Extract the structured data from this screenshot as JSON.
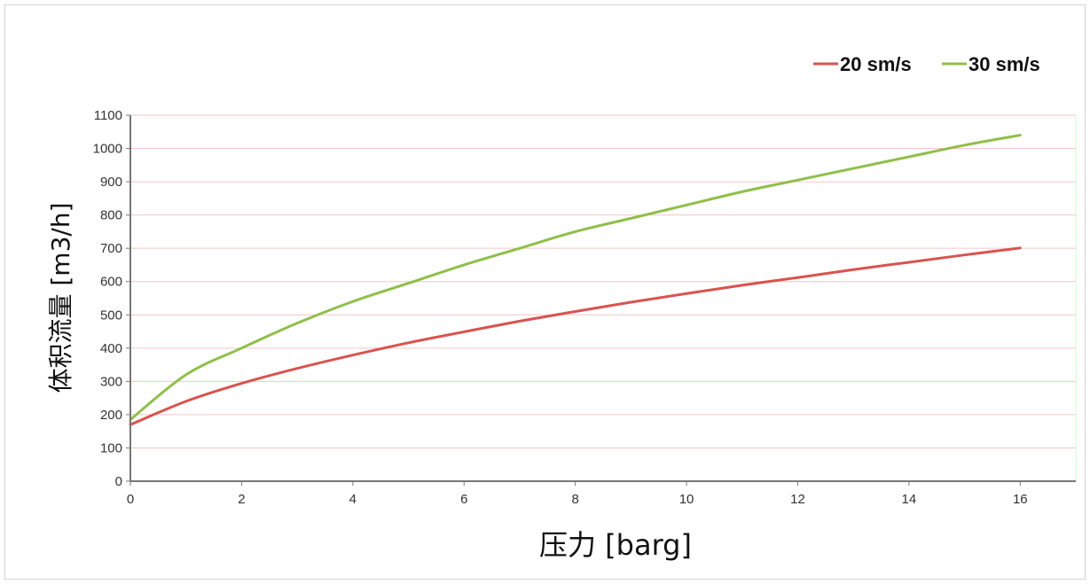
{
  "chart_data": {
    "type": "line",
    "xlabel": "压力 [barg]",
    "ylabel": "体积流量 [m3/h]",
    "xlim": [
      0,
      17
    ],
    "ylim": [
      0,
      1100
    ],
    "x_ticks": [
      0,
      2,
      4,
      6,
      8,
      10,
      12,
      14,
      16
    ],
    "y_ticks": [
      0,
      100,
      200,
      300,
      400,
      500,
      600,
      700,
      800,
      900,
      1000,
      1100
    ],
    "grid": "horizontal",
    "legend_position": "top-right",
    "x": [
      0,
      1,
      2,
      3,
      4,
      5,
      6,
      7,
      8,
      9,
      10,
      11,
      12,
      13,
      14,
      15,
      16
    ],
    "series": [
      {
        "name": "20 sm/s",
        "color": "#d9534f",
        "values": [
          170,
          240,
          294,
          339,
          379,
          416,
          449,
          481,
          510,
          538,
          564,
          589,
          612,
          636,
          658,
          680,
          701
        ]
      },
      {
        "name": "30 sm/s",
        "color": "#8fbf4a",
        "values": [
          185,
          320,
          400,
          475,
          540,
          595,
          650,
          700,
          750,
          790,
          830,
          870,
          905,
          940,
          975,
          1010,
          1040
        ]
      }
    ]
  }
}
